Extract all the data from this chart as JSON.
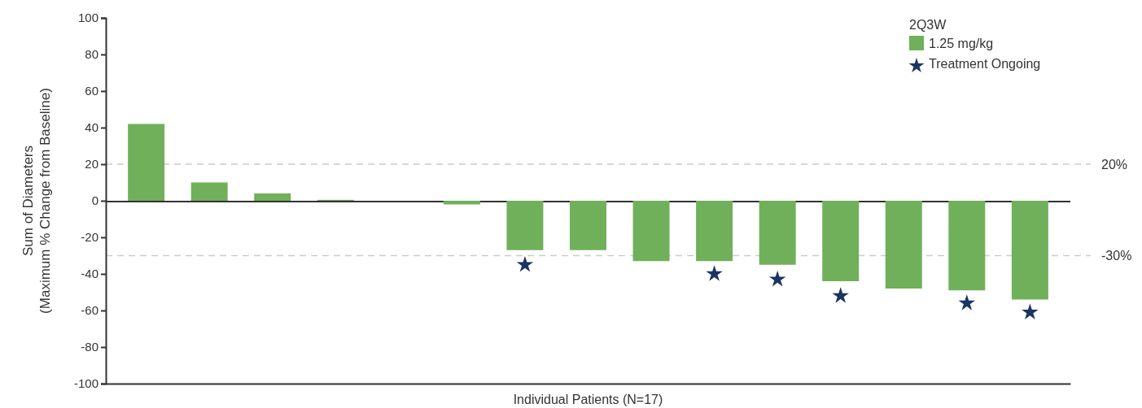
{
  "chart_data": {
    "type": "bar",
    "xlabel": "Individual Patients (N=17)",
    "ylabel": "Sum of Diameters\n(Maximum % Change from Baseline)",
    "legend_title": "2Q3W",
    "legend": "top right",
    "categories": [
      null,
      null,
      null,
      null,
      null,
      null,
      null,
      null,
      null,
      null,
      null,
      null,
      null,
      null,
      null
    ],
    "series": [
      {
        "name": "1.25 mg/kg",
        "color": "#70b05a",
        "values": [
          42,
          10,
          4,
          0.5,
          0,
          -2,
          -27,
          -27,
          -33,
          -33,
          -35,
          -44,
          -48,
          -49,
          -54
        ]
      },
      {
        "name": "Treatment Ongoing",
        "type": "scatter",
        "marker": "star",
        "color": "#1a3563",
        "values": [
          null,
          null,
          null,
          null,
          null,
          null,
          -35,
          null,
          null,
          -40,
          -43,
          -52,
          null,
          -56,
          -61
        ]
      }
    ],
    "ylim": [
      -100,
      100
    ],
    "yticks": [
      -100,
      -80,
      -60,
      -40,
      -20,
      0,
      20,
      40,
      60,
      80,
      100
    ],
    "tick_labels": "y",
    "ref_lines": [
      {
        "axis": "y",
        "value": 20,
        "label": "20%",
        "color": "#cccccc",
        "line_style": "dashed"
      },
      {
        "axis": "y",
        "value": -30,
        "label": "-30%",
        "color": "#cccccc",
        "line_style": "dashed"
      }
    ]
  }
}
